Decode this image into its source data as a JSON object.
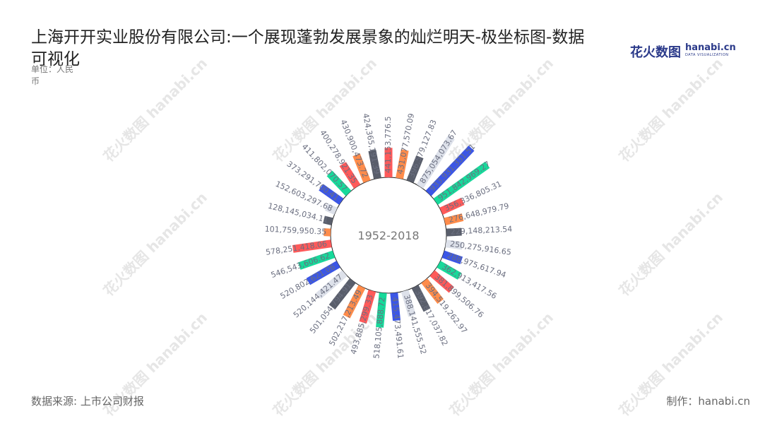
{
  "title": "上海开开实业股份有限公司:一个展现蓬勃发展景象的灿烂明天-极坐标图-数据可视化",
  "unit": "单位：人民币",
  "logo": {
    "cn": "花火数图",
    "en": "hanabi.cn",
    "en_sub": "DATA VISUALIZATION"
  },
  "footer": {
    "source": "数据来源: 上市公司财报",
    "credit": "制作：hanabi.cn"
  },
  "watermark_text": "花火数图 hanabi.cn",
  "colors": [
    "#ff5a5a",
    "#ff8c4b",
    "#595e6b",
    "#dde1ea",
    "#3b56e6",
    "#17d99a"
  ],
  "chart_data": {
    "type": "bar",
    "coordinate": "polar",
    "center_label": "1952-2018",
    "values": [
      441153776.5,
      431077570.09,
      396579127.83,
      875054073.67,
      933931331.51,
      951842969.27,
      356336805.31,
      276648979.79,
      229148213.54,
      250275916.65,
      288975617.94,
      362913417.56,
      381899506.76,
      394519262.97,
      392817037.82,
      388141555.52,
      415473491.61,
      518105888.72,
      493885299.33,
      502217213.49,
      501054794.91,
      520144421.47,
      520802621.06,
      546543606.62,
      578251418.06,
      101759950.35,
      128145034.11,
      152603297.68,
      373291700.41,
      411802070.57,
      400278921.35,
      430900473.72,
      424365191.39
    ],
    "labels": [
      "441,153,776.5",
      "431,077,570.09",
      "396,579,127.83",
      "875,054,073.67",
      "933,931,331.51",
      "951,842,969.27",
      "356,336,805.31",
      "276,648,979.79",
      "229,148,213.54",
      "250,275,916.65",
      "288,975,617.94",
      "362,913,417.56",
      "381,899,506.76",
      "394,519,262.97",
      "392,817,037.82",
      "388,141,555.52",
      "415,473,491.61",
      "518,105,888.72",
      "493,885,299.33",
      "502,217,213.49",
      "501,054,794.91",
      "520,144,421.47",
      "520,802,621.06",
      "546,543,606.62",
      "578,251,418.06",
      "101,759,950.35",
      "128,145,034.11",
      "152,603,297.68",
      "373,291,700.41",
      "411,802,070.57",
      "400,278,921.35",
      "430,900,473.72",
      "424,365,191.39"
    ]
  }
}
